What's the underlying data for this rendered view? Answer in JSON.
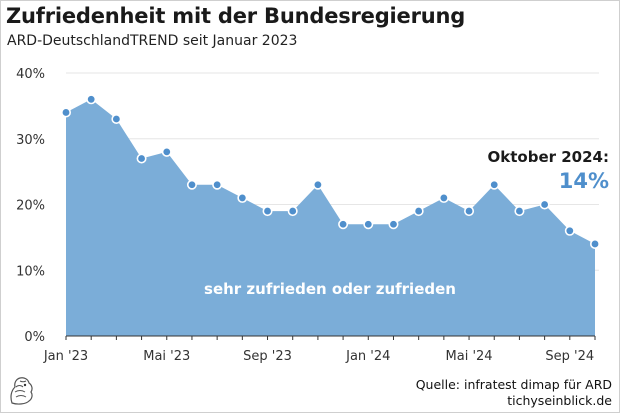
{
  "header": {
    "title": "Zufriedenheit mit der Bundesregierung",
    "subtitle": "ARD-DeutschlandTREND seit Januar 2023"
  },
  "source": {
    "line1": "Quelle: infratest dimap für ARD",
    "line2": "tichyseinblick.de"
  },
  "colors": {
    "area": "#7badd8",
    "accent": "#4f8fcc",
    "point_fill": "#4f8fcc",
    "grid": "#e6e6e6"
  },
  "chart_data": {
    "type": "area",
    "title": "Zufriedenheit mit der Bundesregierung",
    "subtitle": "ARD-DeutschlandTREND seit Januar 2023",
    "series": [
      {
        "name": "sehr zufrieden oder zufrieden",
        "values": [
          34,
          36,
          33,
          27,
          28,
          23,
          23,
          21,
          19,
          19,
          23,
          17,
          17,
          17,
          19,
          21,
          19,
          23,
          19,
          20,
          16,
          14
        ]
      }
    ],
    "y_ticks": [
      "0%",
      "10%",
      "20%",
      "30%",
      "40%"
    ],
    "ylim": [
      0,
      40
    ],
    "x_ticks": [
      {
        "label": "Jan '23",
        "index": 0
      },
      {
        "label": "Mai '23",
        "index": 4
      },
      {
        "label": "Sep '23",
        "index": 8
      },
      {
        "label": "Jan '24",
        "index": 12
      },
      {
        "label": "Mai '24",
        "index": 16
      },
      {
        "label": "Sep '24",
        "index": 20
      }
    ],
    "annotation": {
      "label": "Oktober 2024:",
      "value": "14%"
    },
    "area_label": "sehr zufrieden oder zufrieden",
    "grid": true,
    "legend": "none"
  }
}
